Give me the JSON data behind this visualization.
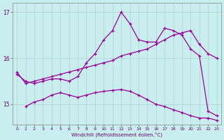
{
  "xlabel": "Windchill (Refroidissement éolien,°C)",
  "bg_color": "#c8eef0",
  "line_color": "#990099",
  "grid_color": "#b0c8c8",
  "xlim": [
    -0.5,
    23.5
  ],
  "ylim": [
    14.55,
    17.2
  ],
  "yticks": [
    15,
    16,
    17
  ],
  "xticks": [
    0,
    1,
    2,
    3,
    4,
    5,
    6,
    7,
    8,
    9,
    10,
    11,
    12,
    13,
    14,
    15,
    16,
    17,
    18,
    19,
    20,
    21,
    22,
    23
  ],
  "line1_x": [
    0,
    1,
    2,
    3,
    4,
    5,
    6,
    7,
    8,
    9,
    10,
    11,
    12,
    13,
    14,
    15,
    16,
    17,
    18,
    19,
    20,
    21,
    22,
    23
  ],
  "line1_y": [
    15.65,
    15.5,
    15.45,
    15.5,
    15.55,
    15.55,
    15.5,
    15.6,
    15.9,
    16.1,
    16.4,
    16.6,
    17.0,
    16.75,
    16.4,
    16.35,
    16.35,
    16.65,
    16.6,
    16.5,
    16.2,
    16.05,
    14.85,
    14.75
  ],
  "line2_x": [
    0,
    1,
    2,
    3,
    4,
    5,
    6,
    7,
    8,
    9,
    10,
    11,
    12,
    13,
    14,
    15,
    16,
    17,
    18,
    19,
    20,
    21,
    22,
    23
  ],
  "line2_y": [
    15.7,
    15.45,
    15.5,
    15.55,
    15.6,
    15.65,
    15.7,
    15.75,
    15.8,
    15.85,
    15.9,
    15.95,
    16.05,
    16.1,
    16.15,
    16.2,
    16.3,
    16.4,
    16.5,
    16.55,
    16.6,
    16.3,
    16.1,
    16.0
  ],
  "line3_x": [
    1,
    2,
    3,
    4,
    5,
    6,
    7,
    8,
    9,
    10,
    11,
    12,
    13,
    14,
    15,
    16,
    17,
    18,
    19,
    20,
    21,
    22,
    23
  ],
  "line3_y": [
    14.95,
    15.05,
    15.1,
    15.2,
    15.25,
    15.2,
    15.15,
    15.2,
    15.25,
    15.28,
    15.3,
    15.32,
    15.28,
    15.2,
    15.1,
    15.0,
    14.95,
    14.88,
    14.82,
    14.75,
    14.7,
    14.7,
    14.65
  ]
}
